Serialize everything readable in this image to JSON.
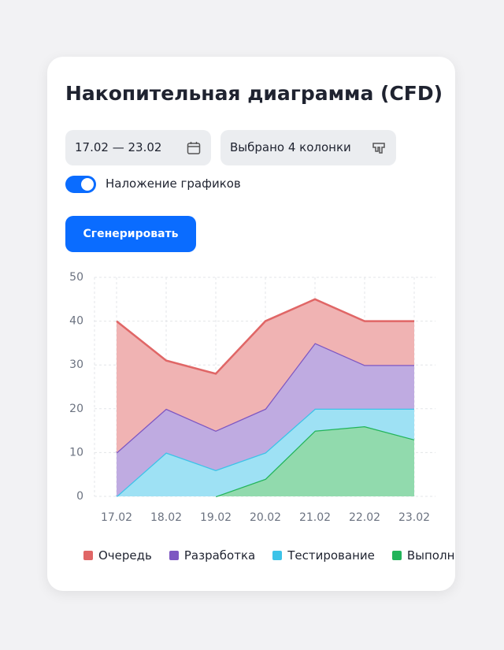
{
  "header": {
    "title": "Накопительная диаграмма (CFD)"
  },
  "controls": {
    "date_range": "17.02 — 23.02",
    "columns": "Выбрано 4 колонки",
    "overlay_toggle": "Наложение графиков",
    "button": "Сгенерировать"
  },
  "chart_data": {
    "type": "stacked_area",
    "categories": [
      "17.02",
      "18.02",
      "19.02",
      "20.02",
      "21.02",
      "22.02",
      "23.02"
    ],
    "series": [
      {
        "name": "Выполнено",
        "color": "#22b45a",
        "values": [
          null,
          null,
          0,
          4,
          15,
          16,
          13
        ]
      },
      {
        "name": "Тестирование",
        "color": "#3cc3e8",
        "values": [
          0,
          10,
          6,
          6,
          5,
          4,
          7
        ]
      },
      {
        "name": "Разработка",
        "color": "#7e57c2",
        "values": [
          10,
          10,
          9,
          10,
          15,
          10,
          10
        ]
      },
      {
        "name": "Очередь",
        "color": "#e06666",
        "values": [
          30,
          11,
          13,
          20,
          10,
          10,
          10
        ]
      }
    ],
    "ylim": [
      0,
      50
    ],
    "yticks": [
      0,
      10,
      20,
      30,
      40,
      50
    ],
    "grid": true
  }
}
